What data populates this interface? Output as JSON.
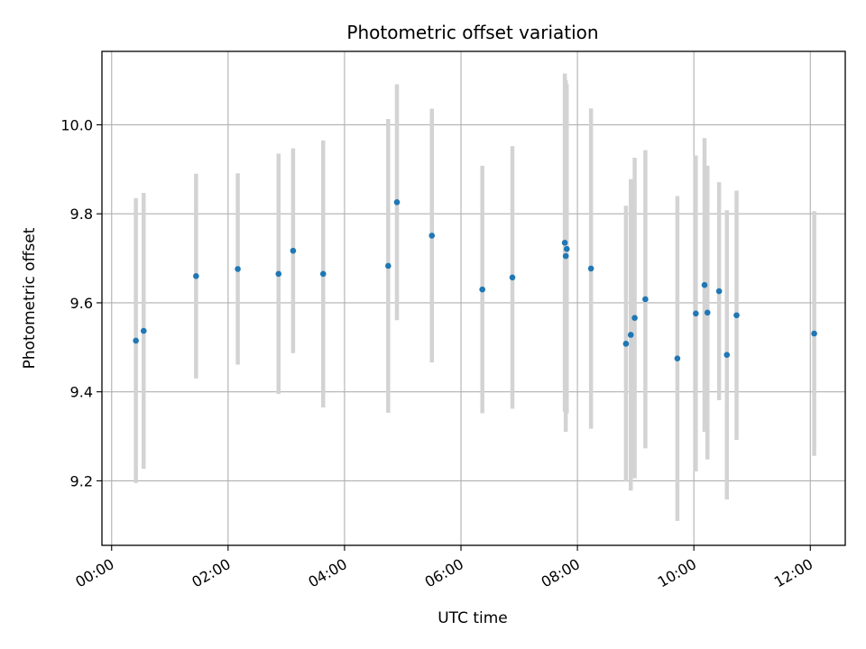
{
  "chart_data": {
    "type": "scatter",
    "title": "Photometric offset variation",
    "xlabel": "UTC time",
    "ylabel": "Photometric offset",
    "x_unit": "hours",
    "xlim": [
      "-00:10",
      "12:36"
    ],
    "ylim": [
      9.055,
      10.165
    ],
    "x_ticks": [
      "00:00",
      "02:00",
      "04:00",
      "06:00",
      "08:00",
      "10:00",
      "12:00"
    ],
    "y_ticks": [
      "9.2",
      "9.4",
      "9.6",
      "9.8",
      "10.0"
    ],
    "grid": true,
    "colors": {
      "point": "#1f77b4",
      "errorbar": "#d3d3d3",
      "grid": "#b0b0b0"
    },
    "points": [
      {
        "x": "00:25",
        "y": 9.515,
        "err": 0.32
      },
      {
        "x": "00:33",
        "y": 9.537,
        "err": 0.31
      },
      {
        "x": "01:27",
        "y": 9.66,
        "err": 0.23
      },
      {
        "x": "02:10",
        "y": 9.676,
        "err": 0.215
      },
      {
        "x": "02:52",
        "y": 9.665,
        "err": 0.27
      },
      {
        "x": "03:07",
        "y": 9.717,
        "err": 0.23
      },
      {
        "x": "03:38",
        "y": 9.665,
        "err": 0.3
      },
      {
        "x": "04:45",
        "y": 9.683,
        "err": 0.33
      },
      {
        "x": "04:54",
        "y": 9.826,
        "err": 0.265
      },
      {
        "x": "05:30",
        "y": 9.751,
        "err": 0.285
      },
      {
        "x": "06:22",
        "y": 9.63,
        "err": 0.278
      },
      {
        "x": "06:53",
        "y": 9.657,
        "err": 0.295
      },
      {
        "x": "07:47",
        "y": 9.735,
        "err": 0.38
      },
      {
        "x": "07:48",
        "y": 9.705,
        "err": 0.395
      },
      {
        "x": "07:49",
        "y": 9.721,
        "err": 0.37
      },
      {
        "x": "08:14",
        "y": 9.677,
        "err": 0.36
      },
      {
        "x": "08:50",
        "y": 9.508,
        "err": 0.31
      },
      {
        "x": "08:55",
        "y": 9.528,
        "err": 0.35
      },
      {
        "x": "08:59",
        "y": 9.566,
        "err": 0.36
      },
      {
        "x": "09:10",
        "y": 9.608,
        "err": 0.335
      },
      {
        "x": "09:43",
        "y": 9.475,
        "err": 0.365
      },
      {
        "x": "10:02",
        "y": 9.576,
        "err": 0.355
      },
      {
        "x": "10:11",
        "y": 9.64,
        "err": 0.33
      },
      {
        "x": "10:14",
        "y": 9.578,
        "err": 0.33
      },
      {
        "x": "10:26",
        "y": 9.626,
        "err": 0.245
      },
      {
        "x": "10:34",
        "y": 9.483,
        "err": 0.325
      },
      {
        "x": "10:44",
        "y": 9.572,
        "err": 0.28
      },
      {
        "x": "12:04",
        "y": 9.531,
        "err": 0.275
      }
    ]
  }
}
